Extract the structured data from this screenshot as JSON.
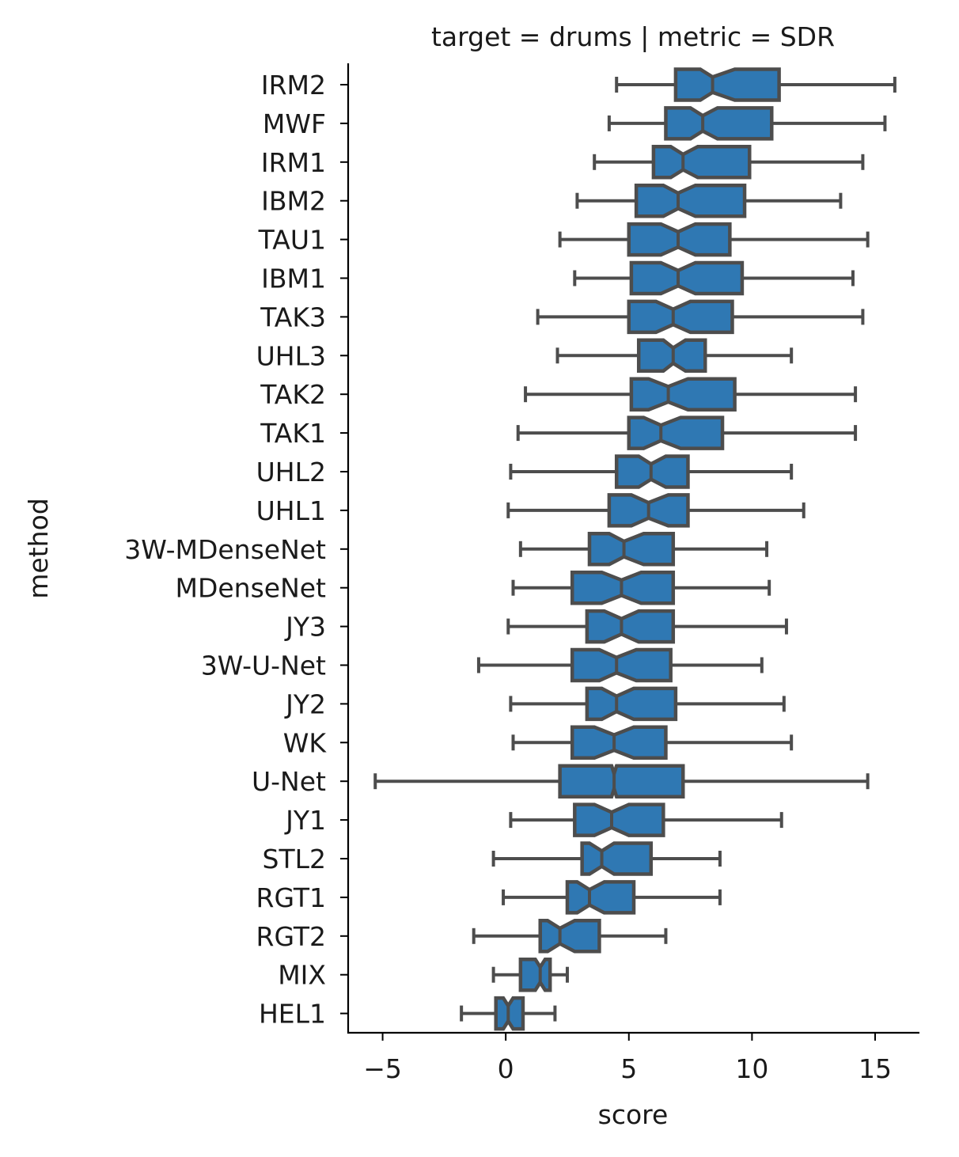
{
  "chart_data": {
    "type": "boxplot",
    "orientation": "horizontal",
    "notched": true,
    "title": "target = drums | metric = SDR",
    "xlabel": "score",
    "ylabel": "method",
    "xlim": [
      -6.4,
      16.8
    ],
    "xticks": [
      -5,
      0,
      5,
      10,
      15
    ],
    "xtick_labels": [
      "−5",
      "0",
      "5",
      "10",
      "15"
    ],
    "grid": false,
    "colors": {
      "box_fill": "#2f78b3",
      "line": "#4d4d4d",
      "axis": "#000000"
    },
    "categories": [
      "IRM2",
      "MWF",
      "IRM1",
      "IBM2",
      "TAU1",
      "IBM1",
      "TAK3",
      "UHL3",
      "TAK2",
      "TAK1",
      "UHL2",
      "UHL1",
      "3W-MDenseNet",
      "MDenseNet",
      "JY3",
      "3W-U-Net",
      "JY2",
      "WK",
      "U-Net",
      "JY1",
      "STL2",
      "RGT1",
      "RGT2",
      "MIX",
      "HEL1"
    ],
    "boxes": [
      {
        "whisker_low": 4.5,
        "q1": 6.9,
        "median": 8.4,
        "q3": 11.1,
        "whisker_high": 15.8,
        "notch_low": 7.9,
        "notch_high": 9.3
      },
      {
        "whisker_low": 4.2,
        "q1": 6.5,
        "median": 8.0,
        "q3": 10.8,
        "whisker_high": 15.4,
        "notch_low": 7.5,
        "notch_high": 8.6
      },
      {
        "whisker_low": 3.6,
        "q1": 6.0,
        "median": 7.2,
        "q3": 9.9,
        "whisker_high": 14.5,
        "notch_low": 6.7,
        "notch_high": 7.8
      },
      {
        "whisker_low": 2.9,
        "q1": 5.3,
        "median": 7.0,
        "q3": 9.7,
        "whisker_high": 13.6,
        "notch_low": 6.4,
        "notch_high": 7.7
      },
      {
        "whisker_low": 2.2,
        "q1": 5.0,
        "median": 7.0,
        "q3": 9.1,
        "whisker_high": 14.7,
        "notch_low": 6.3,
        "notch_high": 7.7
      },
      {
        "whisker_low": 2.8,
        "q1": 5.1,
        "median": 7.0,
        "q3": 9.6,
        "whisker_high": 14.1,
        "notch_low": 6.3,
        "notch_high": 7.7
      },
      {
        "whisker_low": 1.3,
        "q1": 5.0,
        "median": 6.8,
        "q3": 9.2,
        "whisker_high": 14.5,
        "notch_low": 6.1,
        "notch_high": 7.5
      },
      {
        "whisker_low": 2.1,
        "q1": 5.4,
        "median": 6.8,
        "q3": 8.1,
        "whisker_high": 11.6,
        "notch_low": 6.4,
        "notch_high": 7.3
      },
      {
        "whisker_low": 0.8,
        "q1": 5.1,
        "median": 6.6,
        "q3": 9.3,
        "whisker_high": 14.2,
        "notch_low": 5.8,
        "notch_high": 7.4
      },
      {
        "whisker_low": 0.5,
        "q1": 5.0,
        "median": 6.3,
        "q3": 8.8,
        "whisker_high": 14.2,
        "notch_low": 5.6,
        "notch_high": 7.1
      },
      {
        "whisker_low": 0.2,
        "q1": 4.5,
        "median": 5.9,
        "q3": 7.4,
        "whisker_high": 11.6,
        "notch_low": 5.4,
        "notch_high": 6.5
      },
      {
        "whisker_low": 0.1,
        "q1": 4.2,
        "median": 5.8,
        "q3": 7.4,
        "whisker_high": 12.1,
        "notch_low": 5.1,
        "notch_high": 6.6
      },
      {
        "whisker_low": 0.6,
        "q1": 3.4,
        "median": 4.8,
        "q3": 6.8,
        "whisker_high": 10.6,
        "notch_low": 4.2,
        "notch_high": 5.6
      },
      {
        "whisker_low": 0.3,
        "q1": 2.7,
        "median": 4.7,
        "q3": 6.8,
        "whisker_high": 10.7,
        "notch_low": 3.9,
        "notch_high": 5.5
      },
      {
        "whisker_low": 0.1,
        "q1": 3.3,
        "median": 4.7,
        "q3": 6.8,
        "whisker_high": 11.4,
        "notch_low": 4.0,
        "notch_high": 5.4
      },
      {
        "whisker_low": -1.1,
        "q1": 2.7,
        "median": 4.5,
        "q3": 6.7,
        "whisker_high": 10.4,
        "notch_low": 3.8,
        "notch_high": 5.3
      },
      {
        "whisker_low": 0.2,
        "q1": 3.3,
        "median": 4.5,
        "q3": 6.9,
        "whisker_high": 11.3,
        "notch_low": 3.9,
        "notch_high": 5.2
      },
      {
        "whisker_low": 0.3,
        "q1": 2.7,
        "median": 4.4,
        "q3": 6.5,
        "whisker_high": 11.6,
        "notch_low": 3.6,
        "notch_high": 5.2
      },
      {
        "whisker_low": -5.3,
        "q1": 2.2,
        "median": 4.4,
        "q3": 7.2,
        "whisker_high": 14.7,
        "notch_low": 4.3,
        "notch_high": 4.5
      },
      {
        "whisker_low": 0.2,
        "q1": 2.8,
        "median": 4.3,
        "q3": 6.4,
        "whisker_high": 11.2,
        "notch_low": 3.6,
        "notch_high": 5.0
      },
      {
        "whisker_low": -0.5,
        "q1": 3.1,
        "median": 3.9,
        "q3": 5.9,
        "whisker_high": 8.7,
        "notch_low": 3.4,
        "notch_high": 4.4
      },
      {
        "whisker_low": -0.1,
        "q1": 2.5,
        "median": 3.4,
        "q3": 5.2,
        "whisker_high": 8.7,
        "notch_low": 2.9,
        "notch_high": 4.0
      },
      {
        "whisker_low": -1.3,
        "q1": 1.4,
        "median": 2.2,
        "q3": 3.8,
        "whisker_high": 6.5,
        "notch_low": 1.7,
        "notch_high": 2.8
      },
      {
        "whisker_low": -0.5,
        "q1": 0.6,
        "median": 1.4,
        "q3": 1.8,
        "whisker_high": 2.5,
        "notch_low": 1.2,
        "notch_high": 1.6
      },
      {
        "whisker_low": -1.8,
        "q1": -0.4,
        "median": 0.1,
        "q3": 0.7,
        "whisker_high": 2.0,
        "notch_low": -0.1,
        "notch_high": 0.3
      }
    ]
  }
}
